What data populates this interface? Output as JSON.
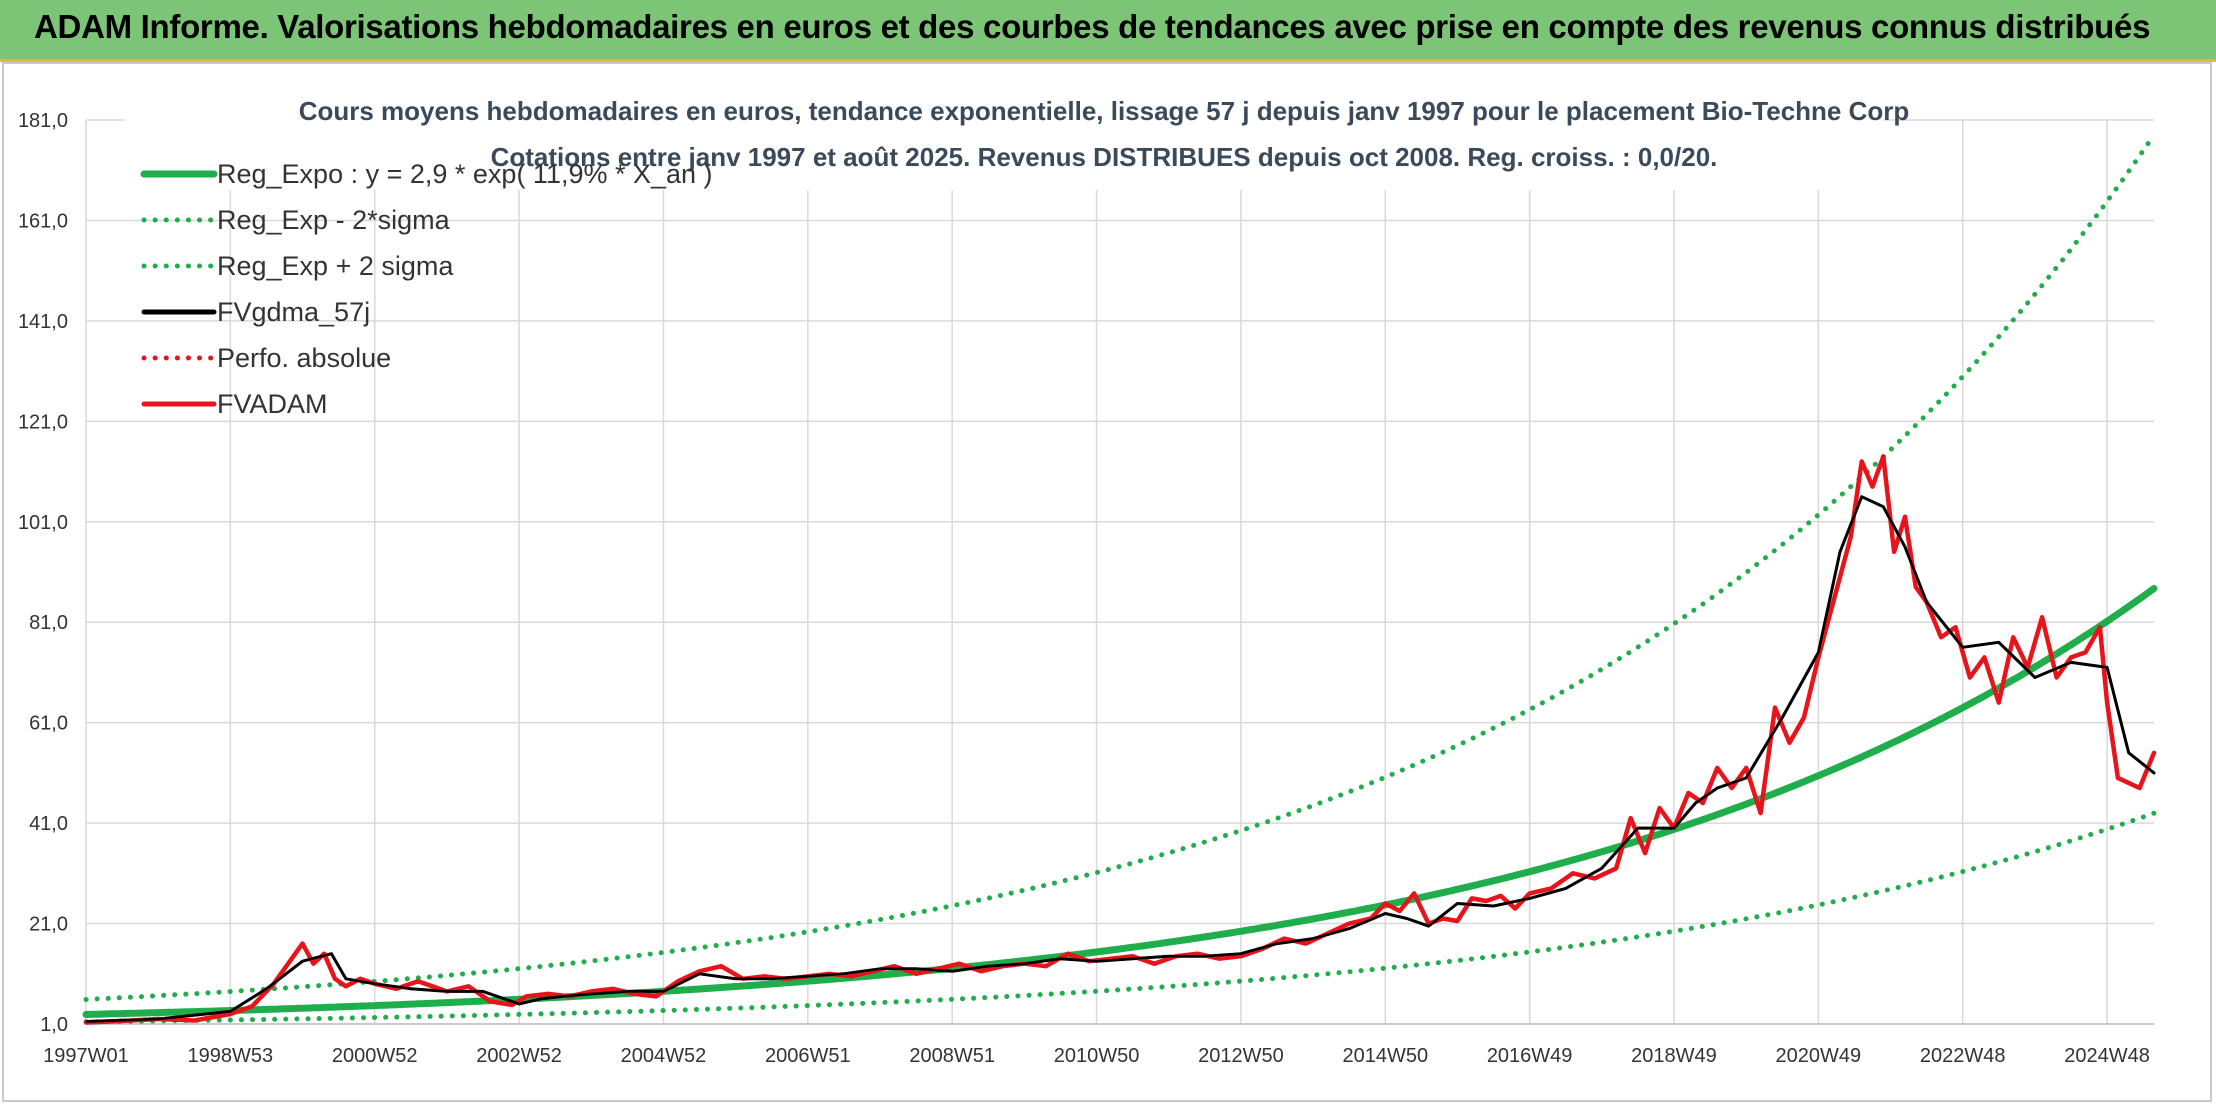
{
  "header": {
    "title": "ADAM Informe. Valorisations hebdomadaires en euros et des courbes de tendances avec prise en compte des revenus connus distribués"
  },
  "chart_data": {
    "type": "line",
    "title": "Cours moyens hebdomadaires en euros, tendance exponentielle, lissage 57 j depuis janv 1997 pour le placement Bio-Techne Corp",
    "subtitle": "Cotations entre janv 1997 et août 2025. Revenus DISTRIBUES depuis oct 2008. Reg. croiss. : 0,0/20.",
    "xlabel": "",
    "ylabel": "",
    "x_ticks": [
      "1997W01",
      "1998W53",
      "2000W52",
      "2002W52",
      "2004W52",
      "2006W51",
      "2008W51",
      "2010W50",
      "2012W50",
      "2014W50",
      "2016W49",
      "2018W49",
      "2020W49",
      "2022W48",
      "2024W48"
    ],
    "x_tick_years": [
      1997.0,
      1999.0,
      2001.0,
      2003.0,
      2005.0,
      2007.0,
      2009.0,
      2011.0,
      2013.0,
      2015.0,
      2017.0,
      2019.0,
      2021.0,
      2023.0,
      2025.0
    ],
    "x_range": [
      1997.0,
      2025.65
    ],
    "y_ticks": [
      "1,0",
      "21,0",
      "41,0",
      "61,0",
      "81,0",
      "101,0",
      "121,0",
      "141,0",
      "161,0",
      "181,0"
    ],
    "y_tick_values": [
      1,
      21,
      41,
      61,
      81,
      101,
      121,
      141,
      161,
      181
    ],
    "ylim": [
      1,
      181
    ],
    "grid": true,
    "legend_position": "top-left",
    "series": [
      {
        "name": "Reg_Expo : y = 2,9 * exp( 11,9% *  X_an )",
        "color": "#1fae4b",
        "style": "solid",
        "kind": "exp",
        "a": 2.9,
        "r": 0.119,
        "factor": 1.0
      },
      {
        "name": "Reg_Exp - 2*sigma",
        "color": "#1fae4b",
        "style": "dotted",
        "kind": "exp",
        "a": 2.9,
        "r": 0.119,
        "factor": 0.49
      },
      {
        "name": "Reg_Exp + 2 sigma",
        "color": "#1fae4b",
        "style": "dotted",
        "kind": "exp",
        "a": 2.9,
        "r": 0.119,
        "factor": 2.03
      },
      {
        "name": "FVgdma_57j",
        "color": "#000000",
        "style": "solid",
        "kind": "points",
        "x": [
          1997.0,
          1998.0,
          1999.0,
          1999.5,
          2000.0,
          2000.4,
          2000.6,
          2001.0,
          2001.5,
          2002.0,
          2002.5,
          2003.0,
          2003.3,
          2003.6,
          2004.0,
          2004.5,
          2005.0,
          2005.5,
          2006.0,
          2006.5,
          2007.0,
          2007.5,
          2008.0,
          2008.5,
          2009.0,
          2009.5,
          2010.0,
          2010.5,
          2011.0,
          2011.5,
          2012.0,
          2012.5,
          2013.0,
          2013.5,
          2014.0,
          2014.5,
          2015.0,
          2015.3,
          2015.6,
          2016.0,
          2016.5,
          2017.0,
          2017.5,
          2018.0,
          2018.5,
          2019.0,
          2019.3,
          2019.6,
          2020.0,
          2020.5,
          2021.0,
          2021.3,
          2021.6,
          2021.9,
          2022.2,
          2022.5,
          2023.0,
          2023.5,
          2024.0,
          2024.5,
          2025.0,
          2025.3,
          2025.65
        ],
        "y": [
          1.5,
          2.0,
          3.5,
          8.0,
          13.5,
          15.0,
          10.0,
          9.0,
          8.0,
          7.5,
          7.5,
          5.0,
          6.0,
          6.5,
          7.0,
          7.5,
          7.5,
          11.0,
          10.0,
          10.0,
          10.5,
          11.0,
          12.0,
          12.0,
          11.5,
          12.5,
          13.0,
          14.0,
          13.5,
          14.0,
          14.5,
          14.5,
          15.0,
          17.0,
          18.0,
          20.0,
          23.0,
          22.0,
          20.5,
          25.0,
          24.5,
          26.0,
          28.0,
          32.0,
          40.0,
          40.0,
          45.0,
          48.0,
          50.0,
          62.0,
          75.0,
          95.0,
          106.0,
          104.0,
          96.0,
          85.0,
          76.0,
          77.0,
          70.0,
          73.0,
          72.0,
          55.0,
          51.0
        ]
      },
      {
        "name": "Perfo. absolue",
        "color": "#e8141b",
        "style": "dotted",
        "kind": "none"
      },
      {
        "name": "FVADAM",
        "color": "#e8141b",
        "style": "solid",
        "kind": "points",
        "x": [
          1997.0,
          1997.5,
          1998.0,
          1998.5,
          1999.0,
          1999.3,
          1999.6,
          1999.8,
          2000.0,
          2000.15,
          2000.3,
          2000.45,
          2000.6,
          2000.8,
          2001.0,
          2001.3,
          2001.6,
          2002.0,
          2002.3,
          2002.6,
          2002.9,
          2003.1,
          2003.4,
          2003.7,
          2004.0,
          2004.3,
          2004.6,
          2004.9,
          2005.2,
          2005.5,
          2005.8,
          2006.1,
          2006.4,
          2006.7,
          2007.0,
          2007.3,
          2007.6,
          2007.9,
          2008.2,
          2008.5,
          2008.8,
          2009.1,
          2009.4,
          2009.7,
          2010.0,
          2010.3,
          2010.6,
          2010.9,
          2011.2,
          2011.5,
          2011.8,
          2012.1,
          2012.4,
          2012.7,
          2013.0,
          2013.3,
          2013.6,
          2013.9,
          2014.2,
          2014.5,
          2014.8,
          2015.0,
          2015.2,
          2015.4,
          2015.6,
          2015.8,
          2016.0,
          2016.2,
          2016.4,
          2016.6,
          2016.8,
          2017.0,
          2017.3,
          2017.6,
          2017.9,
          2018.2,
          2018.4,
          2018.6,
          2018.8,
          2019.0,
          2019.2,
          2019.4,
          2019.6,
          2019.8,
          2020.0,
          2020.2,
          2020.4,
          2020.6,
          2020.8,
          2021.0,
          2021.15,
          2021.3,
          2021.45,
          2021.6,
          2021.75,
          2021.9,
          2022.05,
          2022.2,
          2022.35,
          2022.5,
          2022.7,
          2022.9,
          2023.1,
          2023.3,
          2023.5,
          2023.7,
          2023.9,
          2024.1,
          2024.3,
          2024.5,
          2024.7,
          2024.9,
          2025.0,
          2025.15,
          2025.3,
          2025.45,
          2025.65
        ],
        "y": [
          1.3,
          1.6,
          2.0,
          1.7,
          3.0,
          4.5,
          9.0,
          13.0,
          17.0,
          13.0,
          15.0,
          10.0,
          8.5,
          10.0,
          9.0,
          8.0,
          9.5,
          7.5,
          8.5,
          5.5,
          4.8,
          6.5,
          7.0,
          6.5,
          7.5,
          8.0,
          7.0,
          6.5,
          9.5,
          11.5,
          12.5,
          10.0,
          10.5,
          10.0,
          10.5,
          11.0,
          10.5,
          11.5,
          12.5,
          11.0,
          12.0,
          13.0,
          11.5,
          12.5,
          13.0,
          12.5,
          15.0,
          13.5,
          14.0,
          14.5,
          13.0,
          14.5,
          15.0,
          14.0,
          14.5,
          16.0,
          18.0,
          17.0,
          19.0,
          21.0,
          22.0,
          25.0,
          23.5,
          27.0,
          21.0,
          22.0,
          21.5,
          26.0,
          25.5,
          26.5,
          24.0,
          27.0,
          28.0,
          31.0,
          30.0,
          32.0,
          42.0,
          35.0,
          44.0,
          40.0,
          47.0,
          45.0,
          52.0,
          48.0,
          52.0,
          43.0,
          64.0,
          57.0,
          62.0,
          74.0,
          82.0,
          90.0,
          98.0,
          113.0,
          108.0,
          114.0,
          95.0,
          102.0,
          88.0,
          85.0,
          78.0,
          80.0,
          70.0,
          74.0,
          65.0,
          78.0,
          72.0,
          82.0,
          70.0,
          74.0,
          75.0,
          80.0,
          65.0,
          50.0,
          49.0,
          48.0,
          55.0
        ]
      }
    ]
  }
}
